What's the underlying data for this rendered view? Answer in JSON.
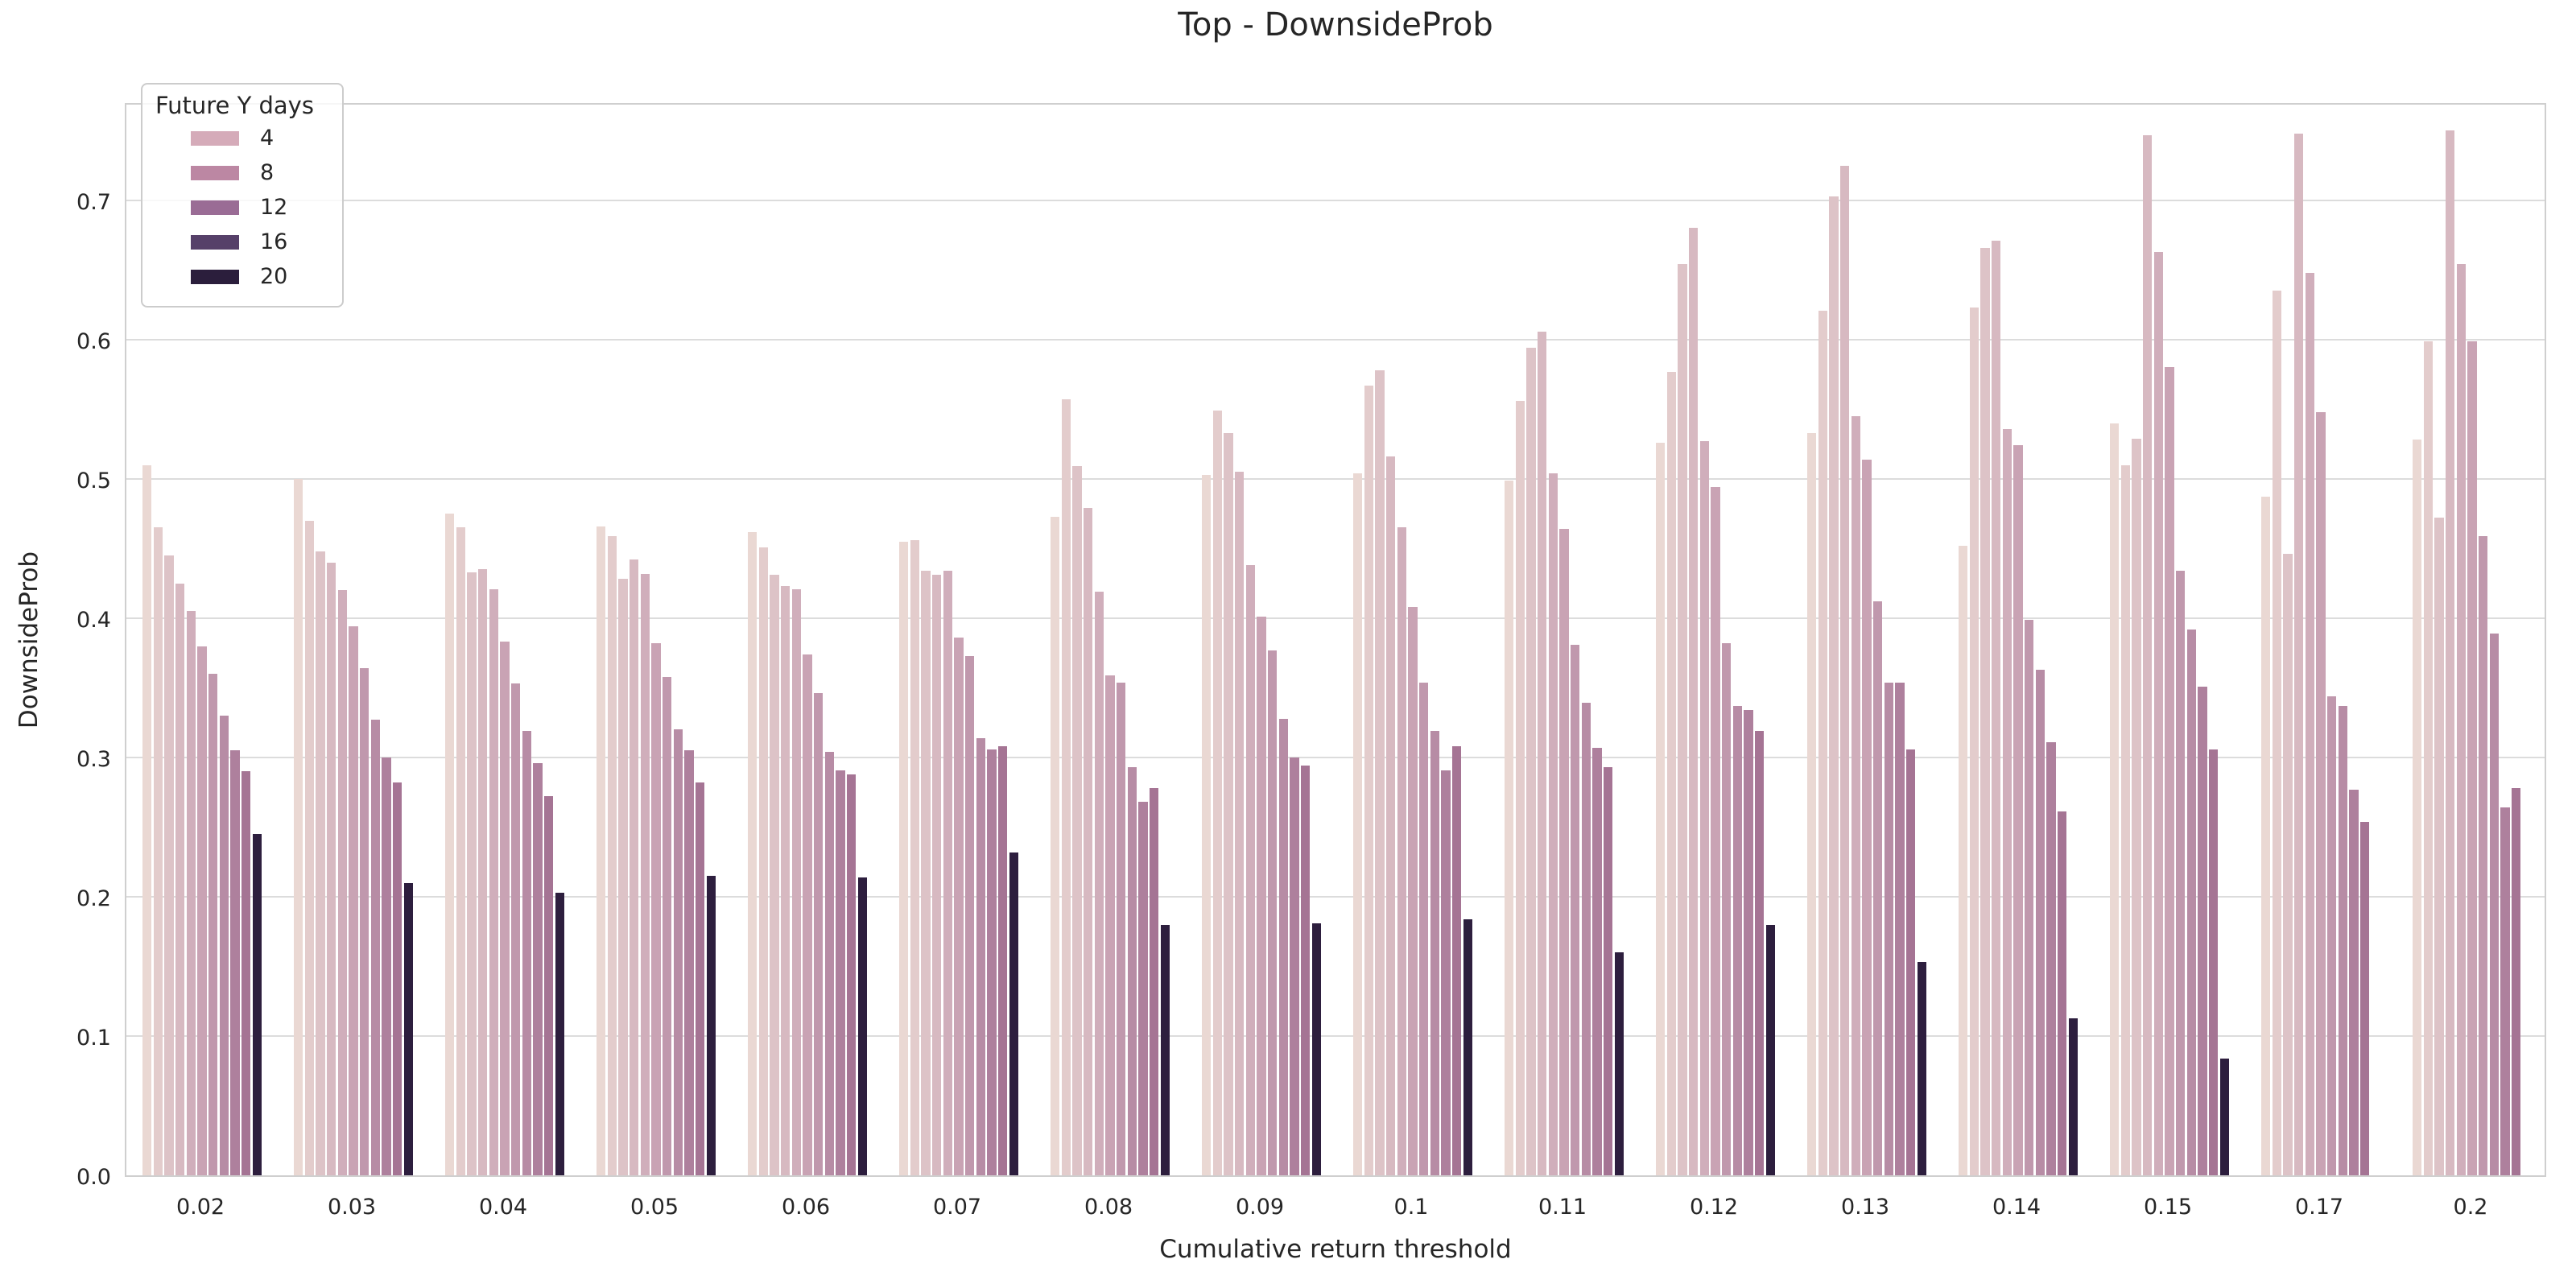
{
  "chart_data": {
    "type": "bar",
    "title": "Top - DownsideProb",
    "xlabel": "Cumulative return threshold",
    "ylabel": "DownsideProb",
    "ylim": [
      0,
      0.771
    ],
    "ytick_values": [
      0.0,
      0.1,
      0.2,
      0.3,
      0.4,
      0.5,
      0.6,
      0.7
    ],
    "grid": "horizontal",
    "background_color": "#ffffff",
    "gridline_color": "#dcdcdc",
    "spine_color": "#cfcfcf",
    "text_color": "#262626",
    "bars_per_group": 11,
    "palette": [
      "#ead8d3",
      "#e3cccc",
      "#ddc3c7",
      "#d7b9c1",
      "#d0aebb",
      "#c9a3b4",
      "#c098ad",
      "#b78ca5",
      "#ae809d",
      "#a57494",
      "#2d1e3e"
    ],
    "legend": {
      "title": "Future Y days",
      "position": "upper-left",
      "entries": [
        {
          "label": "4",
          "color": "#d5abb9"
        },
        {
          "label": "8",
          "color": "#bc87a3"
        },
        {
          "label": "12",
          "color": "#9a6c95"
        },
        {
          "label": "16",
          "color": "#564069"
        },
        {
          "label": "20",
          "color": "#2b1e3c"
        }
      ]
    },
    "categories": [
      "0.02",
      "0.03",
      "0.04",
      "0.05",
      "0.06",
      "0.07",
      "0.08",
      "0.09",
      "0.1",
      "0.11",
      "0.12",
      "0.13",
      "0.14",
      "0.15",
      "0.17",
      "0.2"
    ],
    "groups": [
      {
        "category": "0.02",
        "values": [
          0.51,
          0.465,
          0.445,
          0.425,
          0.405,
          0.38,
          0.36,
          0.33,
          0.305,
          0.29,
          0.245
        ]
      },
      {
        "category": "0.03",
        "values": [
          0.5,
          0.47,
          0.448,
          0.44,
          0.42,
          0.394,
          0.364,
          0.327,
          0.3,
          0.282,
          0.21
        ]
      },
      {
        "category": "0.04",
        "values": [
          0.475,
          0.465,
          0.433,
          0.435,
          0.421,
          0.383,
          0.353,
          0.319,
          0.296,
          0.272,
          0.203
        ]
      },
      {
        "category": "0.05",
        "values": [
          0.466,
          0.459,
          0.428,
          0.442,
          0.432,
          0.382,
          0.358,
          0.32,
          0.305,
          0.282,
          0.215
        ]
      },
      {
        "category": "0.06",
        "values": [
          0.462,
          0.451,
          0.431,
          0.423,
          0.421,
          0.374,
          0.346,
          0.304,
          0.291,
          0.288,
          0.214
        ]
      },
      {
        "category": "0.07",
        "values": [
          0.455,
          0.456,
          0.434,
          0.431,
          0.434,
          0.386,
          0.373,
          0.314,
          0.306,
          0.308,
          0.232
        ]
      },
      {
        "category": "0.08",
        "values": [
          0.473,
          0.557,
          0.509,
          0.479,
          0.419,
          0.359,
          0.354,
          0.293,
          0.268,
          0.278,
          0.18
        ]
      },
      {
        "category": "0.09",
        "values": [
          0.503,
          0.549,
          0.533,
          0.505,
          0.438,
          0.401,
          0.377,
          0.328,
          0.3,
          0.294,
          0.181
        ]
      },
      {
        "category": "0.1",
        "values": [
          0.504,
          0.567,
          0.578,
          0.516,
          0.465,
          0.408,
          0.354,
          0.319,
          0.291,
          0.308,
          0.184
        ]
      },
      {
        "category": "0.11",
        "values": [
          0.499,
          0.556,
          0.594,
          0.606,
          0.504,
          0.464,
          0.381,
          0.339,
          0.307,
          0.293,
          0.16
        ]
      },
      {
        "category": "0.12",
        "values": [
          0.526,
          0.577,
          0.654,
          0.68,
          0.527,
          0.494,
          0.382,
          0.337,
          0.334,
          0.319,
          0.18
        ]
      },
      {
        "category": "0.13",
        "values": [
          0.533,
          0.621,
          0.703,
          0.725,
          0.545,
          0.514,
          0.412,
          0.354,
          0.354,
          0.306,
          0.153
        ]
      },
      {
        "category": "0.14",
        "values": [
          0.452,
          0.623,
          0.666,
          0.671,
          0.536,
          0.524,
          0.399,
          0.363,
          0.311,
          0.261,
          0.113
        ]
      },
      {
        "category": "0.15",
        "values": [
          0.54,
          0.51,
          0.529,
          0.747,
          0.663,
          0.58,
          0.434,
          0.392,
          0.351,
          0.306,
          0.084
        ]
      },
      {
        "category": "0.17",
        "values": [
          0.487,
          0.635,
          0.446,
          0.748,
          0.648,
          0.548,
          0.344,
          0.337,
          0.277,
          0.254,
          0
        ]
      },
      {
        "category": "0.2",
        "values": [
          0.528,
          0.599,
          0.472,
          0.75,
          0.654,
          0.599,
          0.459,
          0.389,
          0.264,
          0.278,
          0
        ]
      }
    ]
  }
}
